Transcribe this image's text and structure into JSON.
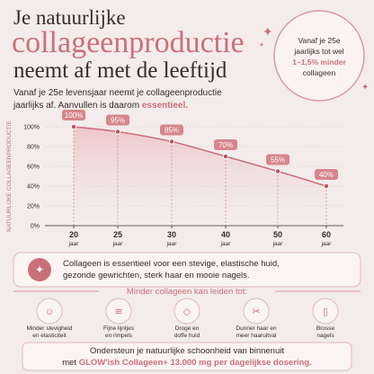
{
  "header": {
    "line1": "Je natuurlijke",
    "line2": "collageenproductie",
    "line3": "neemt af met de leeftijd"
  },
  "badge": {
    "lines": [
      "Vanaf je 25e",
      "jaarlijks tot wel"
    ],
    "highlight": "1–1,5% minder",
    "end": "collageen"
  },
  "subtitle": {
    "line1": "Vanaf je 25e levensjaar neemt je collageenproductie",
    "line2": "jaarlijks af. Aanvullen is daarom ",
    "highlight": "essentieel."
  },
  "chart_data": {
    "type": "line",
    "y_label": "NATUURLIJKE COLLAGEENPRODUCTIE",
    "categories": [
      "20",
      "25",
      "30",
      "40",
      "50",
      "60"
    ],
    "x_unit": "jaar",
    "series": [
      {
        "name": "Collageenproductie",
        "color": "#c9707a",
        "values": [
          100,
          95,
          85,
          70,
          55,
          40
        ],
        "value_labels": [
          "100%",
          "95%",
          "85%",
          "70%",
          "55%",
          "40%"
        ]
      }
    ],
    "ylim": [
      0,
      100
    ],
    "yticks": [
      {
        "value": 0,
        "label": "0%"
      },
      {
        "value": 20,
        "label": "20%"
      },
      {
        "value": 40,
        "label": "40%"
      },
      {
        "value": 60,
        "label": "60%"
      },
      {
        "value": 80,
        "label": "80%"
      },
      {
        "value": 100,
        "label": "100%"
      }
    ],
    "grid": true
  },
  "info": {
    "lines": [
      "Collageen is essentieel voor een stevige, elastische huid,",
      "gezonde gewrichten, sterk haar en mooie nagels."
    ]
  },
  "effects": {
    "title": "Minder collageen kan leiden tot:",
    "items": [
      {
        "lines": [
          "Minder stevigheid",
          "en elasticiteit"
        ]
      },
      {
        "lines": [
          "Fijne lijntjes",
          "en rimpels"
        ]
      },
      {
        "lines": [
          "Droge en",
          "doffe huid"
        ]
      },
      {
        "lines": [
          "Dunner haar en",
          "meer haaruitval"
        ]
      },
      {
        "lines": [
          "Brosse",
          "nagels"
        ]
      }
    ]
  },
  "footer": {
    "line1": "Ondersteun je natuurlijke schoonheid van binnenuit",
    "prefix": "met ",
    "highlight": "GLOW'ish Collageen+ 13.000 mg per dagelijkse dosering."
  }
}
